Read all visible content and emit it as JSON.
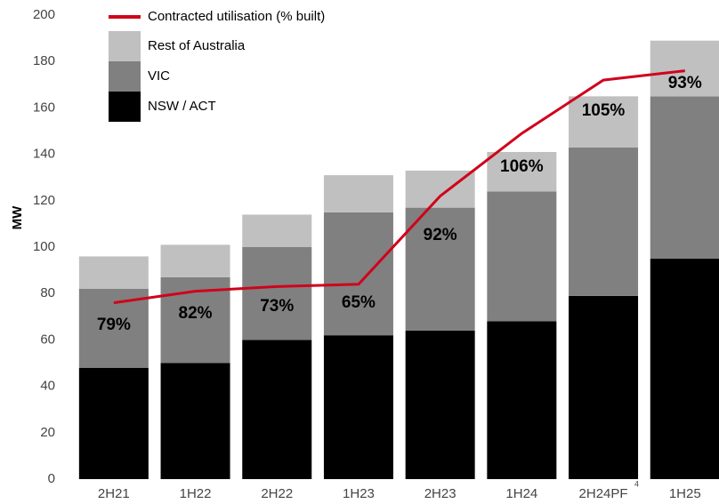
{
  "chart_data": {
    "type": "bar",
    "categories": [
      "2H21",
      "1H22",
      "2H22",
      "1H23",
      "2H23",
      "1H24",
      "2H24PF",
      "1H25"
    ],
    "category_footnote": {
      "index": 6,
      "label": "4"
    },
    "stacked": true,
    "ylabel": "MW",
    "ylim": [
      0,
      200
    ],
    "yticks": [
      0,
      20,
      40,
      60,
      80,
      100,
      120,
      140,
      160,
      180,
      200
    ],
    "grid": false,
    "series": [
      {
        "name": "NSW / ACT",
        "color": "#000000",
        "values": [
          48,
          50,
          60,
          62,
          64,
          68,
          79,
          95
        ]
      },
      {
        "name": "VIC",
        "color": "#808080",
        "values": [
          34,
          37,
          40,
          53,
          53,
          56,
          64,
          70
        ]
      },
      {
        "name": "Rest of Australia",
        "color": "#c0c0c0",
        "values": [
          14,
          14,
          14,
          16,
          16,
          17,
          22,
          24
        ]
      }
    ],
    "line": {
      "name": "Contracted utilisation (% built)",
      "color": "#d0021b",
      "values": [
        76,
        81,
        83,
        84,
        122,
        149,
        172,
        176
      ]
    },
    "annotations": [
      "79%",
      "82%",
      "73%",
      "65%",
      "92%",
      "106%",
      "105%",
      "93%"
    ],
    "legend": "top-left"
  }
}
